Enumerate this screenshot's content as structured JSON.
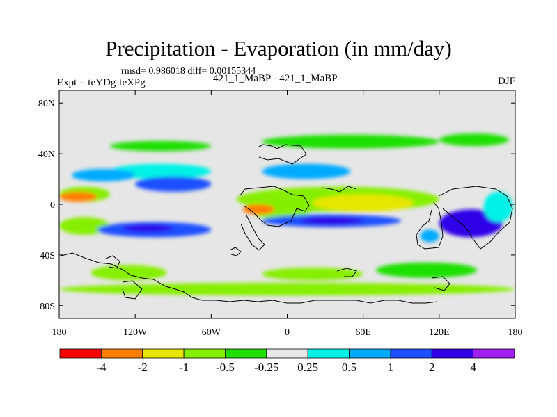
{
  "title": "Precipitation - Evaporation (in mm/day)",
  "subtitle": "rmsd= 0.986018 diff= 0.00155344",
  "left_label": "Expt = teYDg-teXPg",
  "center_label": "421_1_MaBP - 421_1_MaBP",
  "right_label": "DJF",
  "chart_data": {
    "type": "heatmap",
    "title": "Precipitation - Evaporation (in mm/day)",
    "subtitle": "rmsd= 0.986018 diff= 0.00155344",
    "xlim": [
      -180,
      180
    ],
    "ylim": [
      -90,
      90
    ],
    "x_ticks": [
      {
        "value": -180,
        "label": "180"
      },
      {
        "value": -120,
        "label": "120W"
      },
      {
        "value": -60,
        "label": "60W"
      },
      {
        "value": 0,
        "label": "0"
      },
      {
        "value": 60,
        "label": "60E"
      },
      {
        "value": 120,
        "label": "120E"
      },
      {
        "value": 180,
        "label": "180"
      }
    ],
    "y_ticks": [
      {
        "value": 80,
        "label": "80N"
      },
      {
        "value": 40,
        "label": "40N"
      },
      {
        "value": 0,
        "label": "0"
      },
      {
        "value": -40,
        "label": "40S"
      },
      {
        "value": -80,
        "label": "80S"
      }
    ],
    "colorbar": {
      "levels": [
        -4,
        -2,
        -1,
        -0.5,
        -0.25,
        0.25,
        0.5,
        1,
        2,
        4
      ],
      "labels": [
        "-4",
        "-2",
        "-1",
        "-0.5",
        "-0.25",
        "0.25",
        "0.5",
        "1",
        "2",
        "4"
      ],
      "colors": [
        "#ff0000",
        "#ff7f00",
        "#e6e600",
        "#86ef00",
        "#1fe000",
        "#e6e6e6",
        "#00f2e6",
        "#00aaff",
        "#1e4fff",
        "#2f00e8",
        "#a020f0"
      ]
    },
    "regions": [
      {
        "lon": [
          -180,
          180
        ],
        "lat": [
          -72,
          -62
        ],
        "value": -0.6
      },
      {
        "lon": [
          -155,
          -95
        ],
        "lat": [
          -60,
          -48
        ],
        "value": -0.7
      },
      {
        "lon": [
          -20,
          60
        ],
        "lat": [
          -60,
          -50
        ],
        "value": -0.7
      },
      {
        "lon": [
          70,
          150
        ],
        "lat": [
          -58,
          -46
        ],
        "value": -0.5
      },
      {
        "lon": [
          -140,
          -60
        ],
        "lat": [
          42,
          50
        ],
        "value": -0.4
      },
      {
        "lon": [
          -20,
          120
        ],
        "lat": [
          44,
          55
        ],
        "value": -0.5
      },
      {
        "lon": [
          120,
          175
        ],
        "lat": [
          46,
          56
        ],
        "value": -0.5
      },
      {
        "lon": [
          -180,
          -140
        ],
        "lat": [
          -24,
          -10
        ],
        "value": -0.7
      },
      {
        "lon": [
          -180,
          -140
        ],
        "lat": [
          2,
          14
        ],
        "value": -0.6
      },
      {
        "lon": [
          -40,
          120
        ],
        "lat": [
          -6,
          14
        ],
        "value": -0.6
      },
      {
        "lon": [
          -30,
          20
        ],
        "lat": [
          -12,
          6
        ],
        "value": -0.9
      },
      {
        "lon": [
          20,
          100
        ],
        "lat": [
          -6,
          8
        ],
        "value": -1.3
      },
      {
        "lon": [
          -180,
          -150
        ],
        "lat": [
          2,
          10
        ],
        "value": -3.5
      },
      {
        "lon": [
          -35,
          -10
        ],
        "lat": [
          -8,
          0
        ],
        "value": -3.0
      },
      {
        "lon": [
          -140,
          -60
        ],
        "lat": [
          20,
          32
        ],
        "value": 0.4
      },
      {
        "lon": [
          -170,
          -120
        ],
        "lat": [
          18,
          28
        ],
        "value": 0.6
      },
      {
        "lon": [
          -120,
          -60
        ],
        "lat": [
          10,
          22
        ],
        "value": 1.5
      },
      {
        "lon": [
          -20,
          50
        ],
        "lat": [
          20,
          32
        ],
        "value": 0.5
      },
      {
        "lon": [
          -150,
          -60
        ],
        "lat": [
          -26,
          -14
        ],
        "value": 1.5
      },
      {
        "lon": [
          -130,
          -90
        ],
        "lat": [
          -22,
          -16
        ],
        "value": 3.0
      },
      {
        "lon": [
          -20,
          90
        ],
        "lat": [
          -18,
          -8
        ],
        "value": 1.5
      },
      {
        "lon": [
          10,
          60
        ],
        "lat": [
          -16,
          -10
        ],
        "value": 3.0
      },
      {
        "lon": [
          120,
          170
        ],
        "lat": [
          -26,
          -4
        ],
        "value": 2.0
      },
      {
        "lon": [
          130,
          160
        ],
        "lat": [
          -22,
          -10
        ],
        "value": 3.5
      },
      {
        "lon": [
          105,
          120
        ],
        "lat": [
          -30,
          -20
        ],
        "value": 0.6
      },
      {
        "lon": [
          155,
          178
        ],
        "lat": [
          -14,
          10
        ],
        "value": 0.4
      }
    ]
  }
}
